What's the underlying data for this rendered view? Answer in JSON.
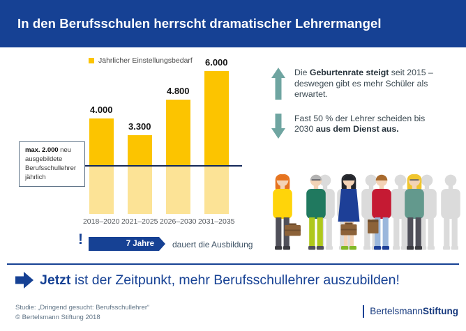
{
  "header": {
    "title": "In den Berufsschulen herrscht dramatischer Lehrermangel"
  },
  "chart_data": {
    "type": "bar",
    "title": "",
    "legend_label": "Jährlicher Einstellungsbedarf",
    "legend_position": "top",
    "grid": false,
    "categories": [
      "2018–2020",
      "2021–2025",
      "2026–2030",
      "2031–2035"
    ],
    "values": [
      4000,
      3300,
      4800,
      6000
    ],
    "value_labels": [
      "4.000",
      "3.300",
      "4.800",
      "6.000"
    ],
    "ylim": [
      0,
      6000
    ],
    "bar_color": "#FCC400",
    "bar_color_below_threshold": "#FCE396",
    "threshold": {
      "value": 2000,
      "note": [
        {
          "t": "max. 2.000",
          "b": true
        },
        {
          "t": " neu ausgebildete Berufsschullehrer jährlich",
          "b": false
        }
      ]
    }
  },
  "duration": {
    "exclamation": "!",
    "banner_label": "7 Jahre",
    "suffix": "dauert die Ausbildung"
  },
  "facts": [
    {
      "icon": "arrow-up-icon",
      "direction": "up",
      "text": [
        {
          "t": "Die ",
          "b": false
        },
        {
          "t": "Geburtenrate steigt",
          "b": true
        },
        {
          "t": " seit 2015 – deswegen gibt es mehr Schüler als erwartet.",
          "b": false
        }
      ]
    },
    {
      "icon": "arrow-down-icon",
      "direction": "down",
      "text": [
        {
          "t": "Fast 50 % der Lehrer scheiden bis 2030 ",
          "b": false
        },
        {
          "t": "aus dem Dienst aus.",
          "b": true
        }
      ]
    }
  ],
  "cta": {
    "text": [
      {
        "t": "Jetzt",
        "b": true
      },
      {
        "t": " ist der Zeitpunkt, mehr Berufsschullehrer auszubilden!",
        "b": false
      }
    ]
  },
  "footer": {
    "study_line1": "Studie: „Dringend gesucht: Berufsschullehrer“",
    "study_line2": "© Bertelsmann Stiftung 2018",
    "logo": [
      {
        "t": "Bertelsmann",
        "b": false
      },
      {
        "t": "Stiftung",
        "b": true
      }
    ]
  },
  "colors": {
    "brand_navy": "#164194",
    "accent_yellow": "#FCC400",
    "accent_yellow_light": "#FCE396",
    "teal_arrow": "#6FA5A1",
    "threshold_line": "#13275A",
    "silhouette_gray": "#DBDBDB"
  },
  "illustration": {
    "description": "teachers with briefcases among gray silhouettes",
    "figures": [
      {
        "role": "silhouette",
        "x": 83
      },
      {
        "role": "silhouette",
        "x": 114
      },
      {
        "role": "silhouette",
        "x": 149
      },
      {
        "role": "silhouette",
        "x": 191
      },
      {
        "role": "silhouette",
        "x": 229
      },
      {
        "role": "silhouette",
        "x": 263
      },
      {
        "role": "teacher",
        "x": 22,
        "style": "long",
        "hair": "#E6731E",
        "top": "#FFD40A",
        "bottom": "#50505A",
        "shoes": "#3A3A40",
        "case": "side"
      },
      {
        "role": "teacher",
        "x": 70,
        "style": "short",
        "hair": "#B3B3B3",
        "top": "#20795F",
        "bottom": "#AFC81C",
        "shoes": "#50505A",
        "glasses": true
      },
      {
        "role": "teacher",
        "x": 117,
        "style": "long",
        "hair": "#23252B",
        "dress": "#1D3F97",
        "shoes": "#83B826",
        "case": "front"
      },
      {
        "role": "teacher",
        "x": 164,
        "style": "short",
        "hair": "#A86A2E",
        "top": "#C51A33",
        "bottom": "#9BB7DC",
        "shoes": "#1D3F97",
        "case": "underarm"
      },
      {
        "role": "teacher",
        "x": 211,
        "style": "long",
        "hair": "#F0C52C",
        "top": "#63998D",
        "bottom": "#50505A",
        "shoes": "#3A3A40",
        "glasses": true
      }
    ]
  }
}
